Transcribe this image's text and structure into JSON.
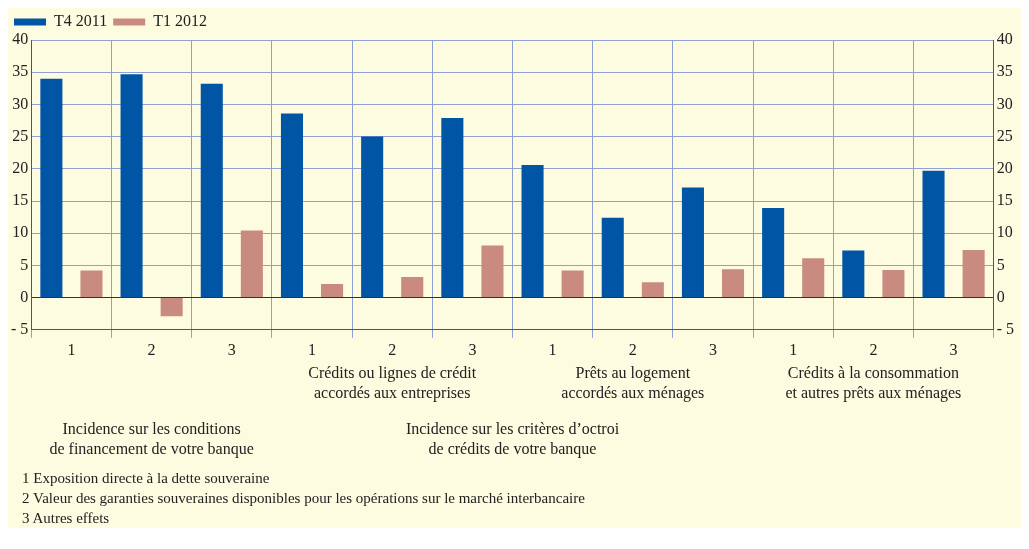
{
  "chart_data": {
    "type": "bar",
    "categories": [
      "1",
      "2",
      "3",
      "1",
      "2",
      "3",
      "1",
      "2",
      "3",
      "1",
      "2",
      "3"
    ],
    "series": [
      {
        "name": "T4 2011",
        "color": "#0055a5",
        "values": [
          34.0,
          34.7,
          33.2,
          28.6,
          25.0,
          27.9,
          20.6,
          12.4,
          17.1,
          13.9,
          7.3,
          19.7
        ]
      },
      {
        "name": "T1 2012",
        "color": "#c98a80",
        "values": [
          4.2,
          -2.9,
          10.4,
          2.1,
          3.2,
          8.1,
          4.2,
          2.4,
          4.4,
          6.1,
          4.3,
          7.4
        ]
      }
    ],
    "ylim": [
      -5,
      40
    ],
    "yticks": [
      {
        "value": -5,
        "label": "- 5"
      },
      0,
      5,
      10,
      15,
      20,
      25,
      30,
      35,
      40
    ],
    "y2lim": [
      -5,
      40
    ],
    "y2ticks": [
      {
        "value": -5,
        "label": "- 5"
      },
      0,
      5,
      10,
      15,
      20,
      25,
      30,
      35,
      40
    ],
    "grid": true,
    "legend": "top left",
    "annotations": [
      "Crédits ou lignes de crédit\naccordés aux entreprises",
      "Prêts au logement\naccordés aux ménages",
      "Crédits à la consommation\net autres prêts aux ménages",
      "Incidence sur les conditions\nde financement de votre banque",
      "Incidence sur les critères d’octroi\nde crédits de votre banque",
      "1 Exposition directe à la dette souveraine",
      "2 Valeur des garanties souveraines disponibles pour les opérations sur le marché interbancaire",
      "3 Autres effets"
    ]
  }
}
